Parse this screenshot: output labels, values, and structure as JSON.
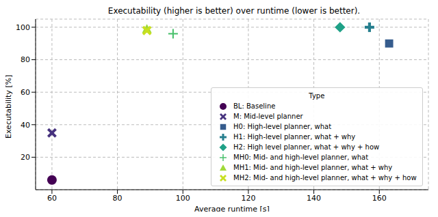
{
  "chart_data": {
    "type": "scatter",
    "title": "Executability (higher is better) over runtime (lower is better).",
    "x_label": "Average runtime [s]",
    "y_label": "Executability [%]",
    "xlim": [
      55,
      175
    ],
    "xticks": [
      60,
      80,
      100,
      120,
      140,
      160
    ],
    "ylim": [
      0,
      105
    ],
    "yticks": [
      20,
      40,
      60,
      80,
      100
    ],
    "grid": true,
    "legend": "lower right",
    "legend_title": "Type",
    "series": [
      {
        "name": "BL: Baseline",
        "color": "#440154",
        "marker": "circle",
        "x": [
          60
        ],
        "values": [
          6
        ]
      },
      {
        "name": "M: Mid-level planner",
        "color": "#46327e",
        "marker": "x",
        "x": [
          60
        ],
        "values": [
          35
        ]
      },
      {
        "name": "H0: High-level planner, what",
        "color": "#365c8d",
        "marker": "square",
        "x": [
          163
        ],
        "values": [
          90
        ]
      },
      {
        "name": "H1: High-level planner, what + why",
        "color": "#277f8e",
        "marker": "plus",
        "x": [
          157
        ],
        "values": [
          100
        ]
      },
      {
        "name": "H2: High level planner, what + why + how",
        "color": "#1fa187",
        "marker": "diamond",
        "x": [
          148
        ],
        "values": [
          100
        ]
      },
      {
        "name": "MH0: Mid- and high-level planner, what",
        "color": "#4ac16d",
        "marker": "thin_plus",
        "x": [
          97
        ],
        "values": [
          96
        ]
      },
      {
        "name": "MH1: Mid- and high-level planner, what + why",
        "color": "#a0da39",
        "marker": "triangle",
        "x": [
          89
        ],
        "values": [
          99
        ]
      },
      {
        "name": "MH2: Mid- and high-level planner, what + why + how",
        "color": "#c8e020",
        "marker": "x",
        "x": [
          89
        ],
        "values": [
          98
        ]
      }
    ]
  }
}
